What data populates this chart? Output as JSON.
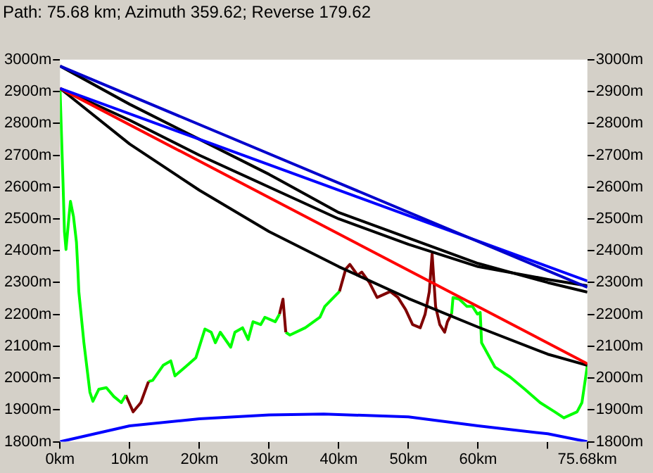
{
  "chart_data": {
    "type": "line",
    "title": "Path: 75.68 km; Azimuth 359.62; Reverse 179.62",
    "xlim": [
      0,
      75.68
    ],
    "xticks": [
      {
        "value": 0,
        "label": "0km"
      },
      {
        "value": 10,
        "label": "10km"
      },
      {
        "value": 20,
        "label": "20km"
      },
      {
        "value": 30,
        "label": "30km"
      },
      {
        "value": 40,
        "label": "40km"
      },
      {
        "value": 50,
        "label": "50km"
      },
      {
        "value": 60,
        "label": "60km"
      },
      {
        "value": 70,
        "label": null
      },
      {
        "value": 75.68,
        "label": "75.68km"
      }
    ],
    "ylim": [
      1800,
      3000
    ],
    "yticks": [
      {
        "value": 1800,
        "label": "1800m"
      },
      {
        "value": 1900,
        "label": "1900m"
      },
      {
        "value": 2000,
        "label": "2000m"
      },
      {
        "value": 2100,
        "label": "2100m"
      },
      {
        "value": 2200,
        "label": "2200m"
      },
      {
        "value": 2300,
        "label": "2300m"
      },
      {
        "value": 2400,
        "label": "2400m"
      },
      {
        "value": 2500,
        "label": "2500m"
      },
      {
        "value": 2600,
        "label": "2600m"
      },
      {
        "value": 2700,
        "label": "2700m"
      },
      {
        "value": 2800,
        "label": "2800m"
      },
      {
        "value": 2900,
        "label": "2900m"
      },
      {
        "value": 3000,
        "label": "3000m"
      }
    ],
    "y2lim": [
      1800,
      3000
    ],
    "y2ticks": [
      {
        "value": 1800,
        "label": "1800m"
      },
      {
        "value": 1900,
        "label": "1900m"
      },
      {
        "value": 2000,
        "label": "2000m"
      },
      {
        "value": 2100,
        "label": "2100m"
      },
      {
        "value": 2200,
        "label": "2200m"
      },
      {
        "value": 2300,
        "label": "2300m"
      },
      {
        "value": 2400,
        "label": "2400m"
      },
      {
        "value": 2500,
        "label": "2500m"
      },
      {
        "value": 2600,
        "label": "2600m"
      },
      {
        "value": 2700,
        "label": "2700m"
      },
      {
        "value": 2800,
        "label": "2800m"
      },
      {
        "value": 2900,
        "label": "2900m"
      },
      {
        "value": 3000,
        "label": "3000m"
      }
    ],
    "grid": false,
    "legend": false,
    "marker": "none",
    "line_style": "solid",
    "series": [
      {
        "color": "#0000cc",
        "x": [
          0,
          75.68
        ],
        "values": [
          2980,
          2285
        ]
      },
      {
        "color": "#0000ff",
        "x": [
          0,
          75.68
        ],
        "values": [
          2910,
          2305
        ]
      },
      {
        "color": "#ff0000",
        "x": [
          0,
          75.68
        ],
        "values": [
          2910,
          2045
        ]
      },
      {
        "color": "#000000",
        "x": [
          0,
          10,
          20,
          30,
          40,
          50,
          60,
          70,
          75.68
        ],
        "values": [
          2980,
          2860,
          2750,
          2640,
          2520,
          2440,
          2360,
          2300,
          2270
        ]
      },
      {
        "color": "#000000",
        "x": [
          0,
          10,
          20,
          30,
          40,
          50,
          60,
          70,
          75.68
        ],
        "values": [
          2910,
          2810,
          2700,
          2600,
          2500,
          2420,
          2350,
          2310,
          2290
        ]
      },
      {
        "color": "#000000",
        "x": [
          0,
          10,
          20,
          30,
          40,
          50,
          60,
          70,
          75.68
        ],
        "values": [
          2910,
          2735,
          2590,
          2460,
          2350,
          2250,
          2160,
          2075,
          2040
        ]
      },
      {
        "color": "#0000ff",
        "x": [
          0,
          10,
          20,
          30,
          37.84,
          50,
          60,
          70,
          75.68
        ],
        "values": [
          1800,
          1850,
          1872,
          1884,
          1887,
          1878,
          1850,
          1825,
          1800
        ]
      },
      {
        "color": "#00ff00",
        "x": [
          0,
          0.43,
          0.64,
          0.86,
          1.29,
          1.5,
          1.93,
          2.36,
          2.58,
          2.7,
          3.43,
          4.29,
          4.72,
          5.58,
          6.65,
          7.73,
          8.8,
          9.44
        ],
        "values": [
          2910,
          2616,
          2460,
          2404,
          2508,
          2555,
          2508,
          2427,
          2333,
          2272,
          2111,
          1956,
          1927,
          1965,
          1970,
          1942,
          1923,
          1946
        ]
      },
      {
        "color": "#800000",
        "x": [
          9.44,
          10.5,
          11.6,
          12.7
        ],
        "values": [
          1946,
          1894,
          1923,
          1989
        ]
      },
      {
        "color": "#00ff00",
        "x": [
          12.7,
          13.3,
          14.8,
          15.9,
          16.5,
          18.0,
          19.5,
          20.8,
          21.7,
          22.3,
          23.0,
          24.5,
          25.1,
          26.2,
          27.0,
          27.7,
          28.8,
          29.4,
          30.9,
          31.5
        ],
        "values": [
          1989,
          1993,
          2040,
          2054,
          2007,
          2035,
          2064,
          2154,
          2144,
          2111,
          2144,
          2097,
          2144,
          2158,
          2121,
          2177,
          2168,
          2191,
          2177,
          2201
        ]
      },
      {
        "color": "#800000",
        "x": [
          31.5,
          32.0,
          32.4
        ],
        "values": [
          2201,
          2248,
          2144
        ]
      },
      {
        "color": "#00ff00",
        "x": [
          32.4,
          33.0,
          35.2,
          37.3,
          38.0,
          40.1
        ],
        "values": [
          2144,
          2135,
          2158,
          2191,
          2225,
          2272
        ]
      },
      {
        "color": "#800000",
        "x": [
          40.1,
          41.0,
          41.6,
          42.7,
          43.3,
          44.4,
          45.5,
          47.4,
          48.5,
          49.6,
          50.6,
          51.7,
          52.4,
          53.0,
          53.4,
          53.9,
          54.5,
          55.2,
          55.6,
          56.2
        ],
        "values": [
          2272,
          2342,
          2357,
          2323,
          2333,
          2300,
          2253,
          2272,
          2253,
          2215,
          2168,
          2158,
          2201,
          2272,
          2390,
          2225,
          2168,
          2144,
          2177,
          2201
        ]
      },
      {
        "color": "#00ff00",
        "x": [
          56.2,
          56.4,
          57.3,
          58.4,
          59.2,
          59.9,
          60.3,
          60.5,
          62.4,
          64.6,
          66.7,
          68.9,
          71.0,
          72.3,
          74.2,
          74.9,
          75.68
        ],
        "values": [
          2201,
          2253,
          2248,
          2225,
          2225,
          2201,
          2206,
          2111,
          2035,
          2003,
          1965,
          1923,
          1894,
          1875,
          1894,
          1923,
          2040
        ]
      }
    ]
  }
}
